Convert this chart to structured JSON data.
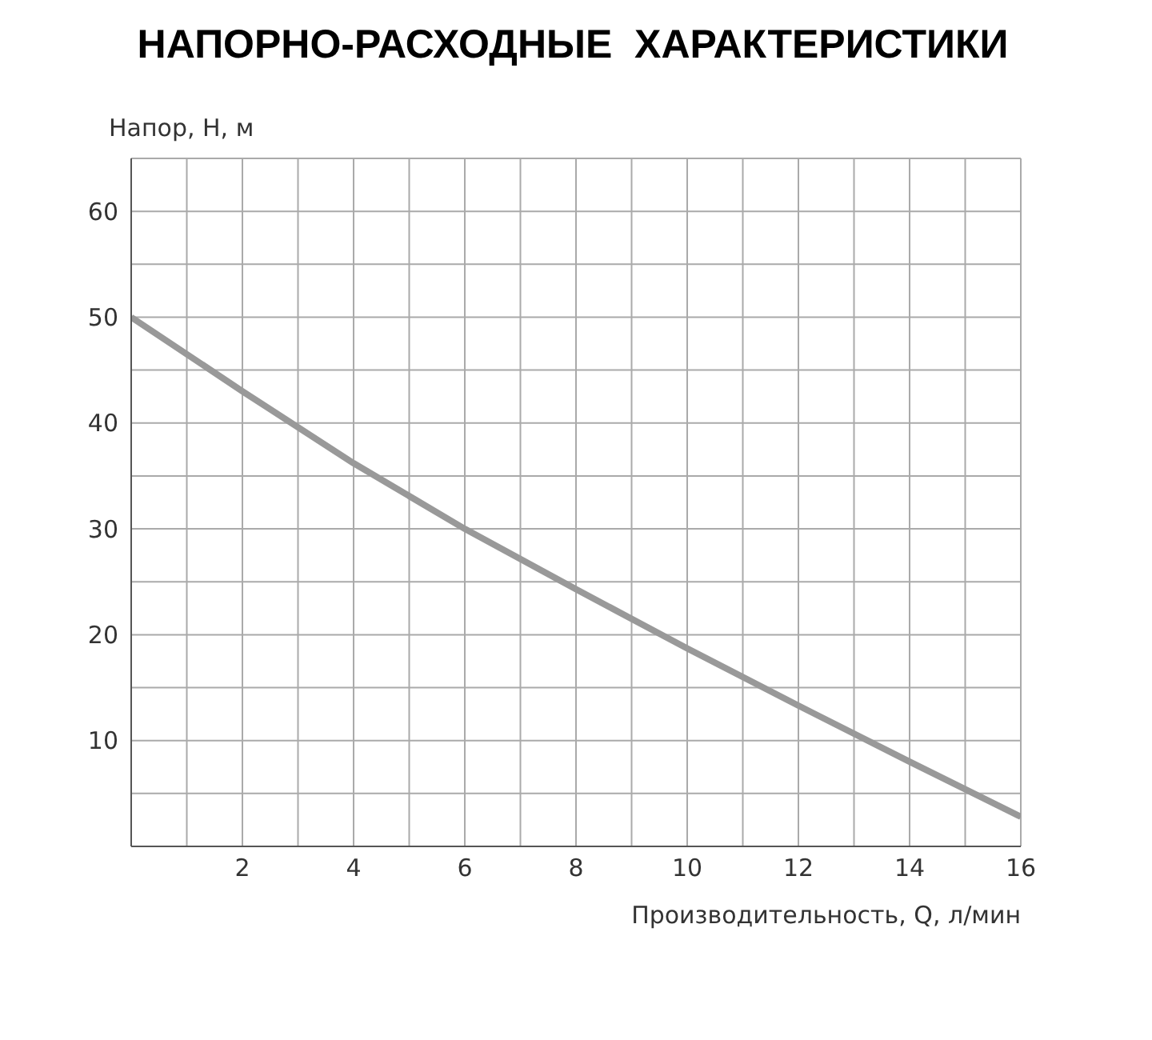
{
  "chart_data": {
    "type": "line",
    "title": "НАПОРНО-РАСХОДНЫЕ  ХАРАКТЕРИСТИКИ",
    "xlabel": "Производительность, Q, л/мин",
    "ylabel": "Напор, Н, м",
    "x": [
      0,
      2,
      4,
      6,
      8,
      10,
      12,
      14,
      16
    ],
    "series": [
      {
        "color": "#999999",
        "values": [
          50,
          43,
          36.2,
          30,
          24.3,
          18.7,
          13.3,
          8,
          2.8
        ]
      }
    ],
    "xlim": [
      0,
      16
    ],
    "ylim": [
      0,
      65
    ],
    "xticks": [
      {
        "value": 0,
        "label": null
      },
      {
        "value": 1,
        "label": null
      },
      2,
      {
        "value": 3,
        "label": null
      },
      4,
      {
        "value": 5,
        "label": null
      },
      6,
      {
        "value": 7,
        "label": null
      },
      8,
      {
        "value": 9,
        "label": null
      },
      10,
      {
        "value": 11,
        "label": null
      },
      12,
      {
        "value": 13,
        "label": null
      },
      14,
      {
        "value": 15,
        "label": null
      },
      16
    ],
    "yticks": [
      {
        "value": 0,
        "label": null
      },
      {
        "value": 5,
        "label": null
      },
      10,
      {
        "value": 15,
        "label": null
      },
      20,
      {
        "value": 25,
        "label": null
      },
      30,
      {
        "value": 35,
        "label": null
      },
      40,
      {
        "value": 45,
        "label": null
      },
      50,
      {
        "value": 55,
        "label": null
      },
      60,
      {
        "value": 65,
        "label": null
      }
    ],
    "grid": true,
    "marker": "none",
    "line_style": "solid"
  }
}
